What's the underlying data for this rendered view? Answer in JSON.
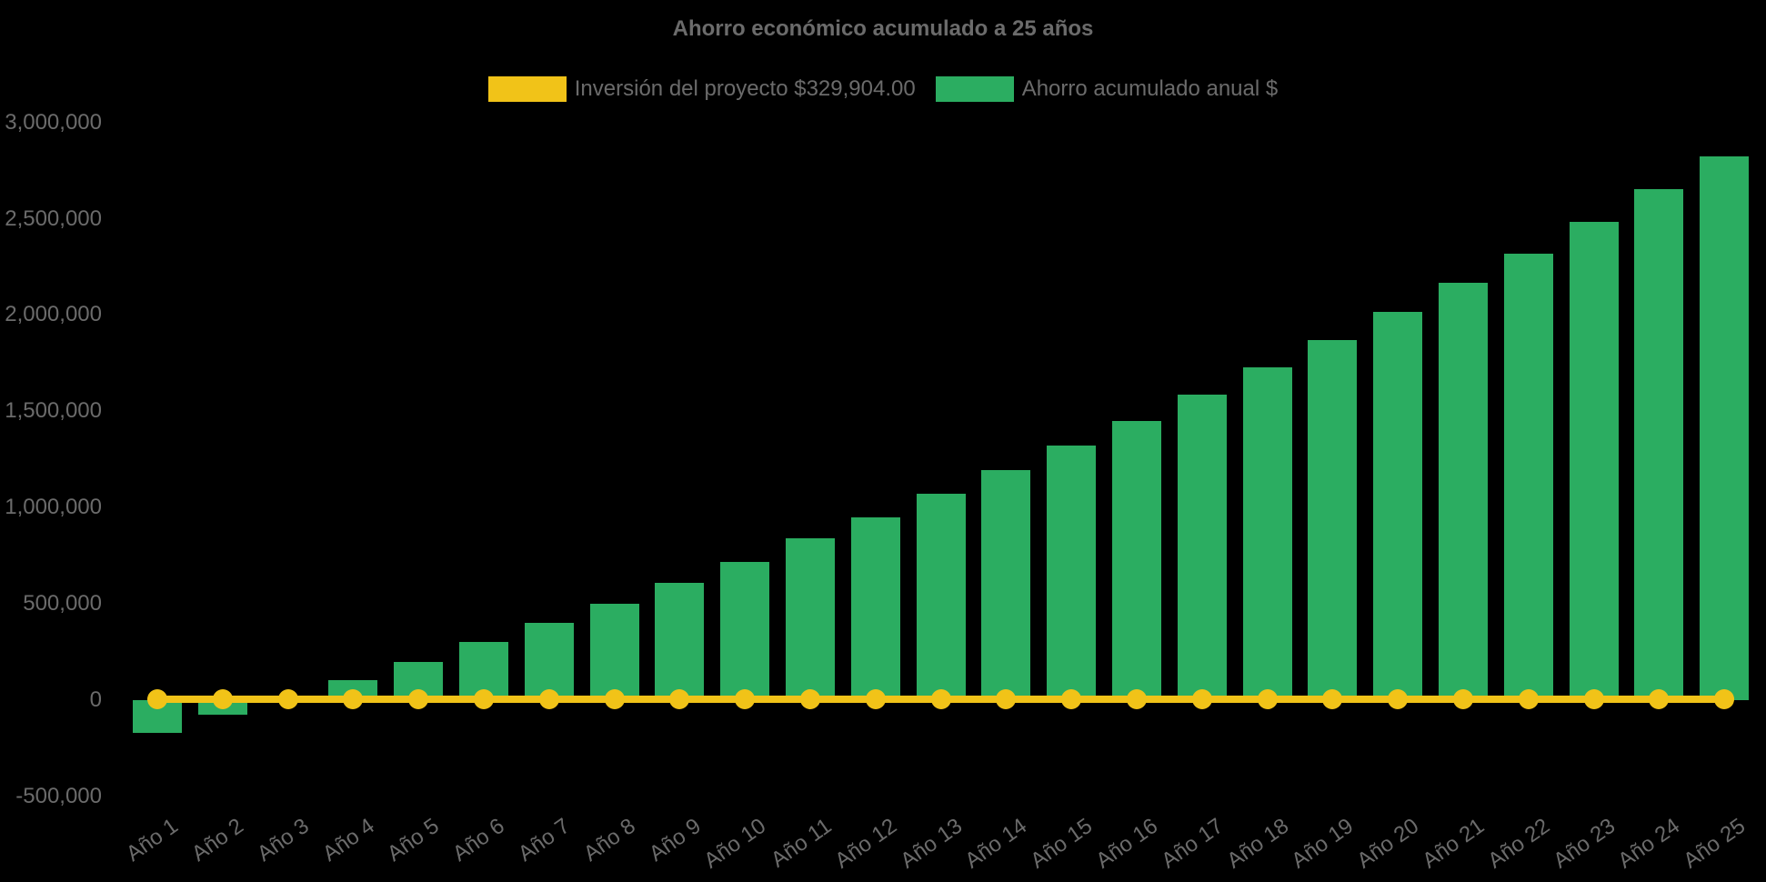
{
  "page": {
    "background_color": "#000000",
    "text_color": "#6b6b6b"
  },
  "chart_data": {
    "type": "bar",
    "title": "Ahorro económico acumulado a 25 años",
    "legend_position": "top",
    "categories": [
      "Año 1",
      "Año 2",
      "Año 3",
      "Año 4",
      "Año 5",
      "Año 6",
      "Año 7",
      "Año 8",
      "Año 9",
      "Año 10",
      "Año 11",
      "Año 12",
      "Año 13",
      "Año 14",
      "Año 15",
      "Año 16",
      "Año 17",
      "Año 18",
      "Año 19",
      "Año 20",
      "Año 21",
      "Año 22",
      "Año 23",
      "Año 24",
      "Año 25"
    ],
    "series": [
      {
        "name": "Inversión del proyecto $329,904.00",
        "type": "line",
        "color": "#f1c318",
        "marker": "circle",
        "investment_amount_shown_in_label": "$329,904.00",
        "values": [
          0,
          0,
          0,
          0,
          0,
          0,
          0,
          0,
          0,
          0,
          0,
          0,
          0,
          0,
          0,
          0,
          0,
          0,
          0,
          0,
          0,
          0,
          0,
          0,
          0
        ]
      },
      {
        "name": "Ahorro acumulado anual $",
        "type": "bar",
        "color": "#2bad61",
        "values": [
          -170000,
          -75000,
          15000,
          105000,
          200000,
          300000,
          400000,
          500000,
          610000,
          720000,
          840000,
          950000,
          1070000,
          1195000,
          1320000,
          1450000,
          1585000,
          1730000,
          1870000,
          2015000,
          2165000,
          2320000,
          2485000,
          2655000,
          2825000
        ]
      }
    ],
    "y_axis": {
      "min": -500000,
      "max": 3000000,
      "tick_step": 500000,
      "tick_values": [
        3000000,
        2500000,
        2000000,
        1500000,
        1000000,
        500000,
        0,
        -500000
      ],
      "tick_labels": [
        "3,000,000",
        "2,500,000",
        "2,000,000",
        "1,500,000",
        "1,000,000",
        "500,000",
        "0",
        "-500,000"
      ],
      "grid": false
    },
    "x_axis": {
      "tick_labels_rotation_deg": -35,
      "grid": false
    }
  }
}
